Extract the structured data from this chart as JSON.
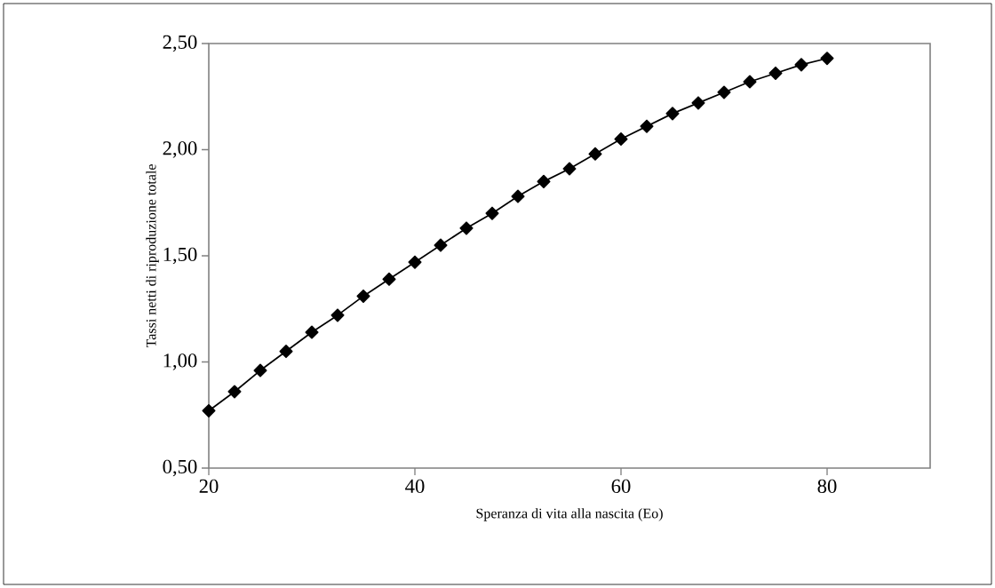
{
  "chart_data": {
    "type": "line",
    "xlabel": "Speranza di vita alla nascita (Eo)",
    "ylabel": "Tassi netti di riproduzione totale",
    "x": [
      20,
      22.5,
      25,
      27.5,
      30,
      32.5,
      35,
      37.5,
      40,
      42.5,
      45,
      47.5,
      50,
      52.5,
      55,
      57.5,
      60,
      62.5,
      65,
      67.5,
      70,
      72.5,
      75,
      77.5,
      80
    ],
    "series": [
      {
        "color": "#000000",
        "values": [
          0.77,
          0.86,
          0.96,
          1.05,
          1.14,
          1.22,
          1.31,
          1.39,
          1.47,
          1.55,
          1.63,
          1.7,
          1.78,
          1.85,
          1.91,
          1.98,
          2.05,
          2.11,
          2.17,
          2.22,
          2.27,
          2.32,
          2.36,
          2.4,
          2.43
        ]
      }
    ],
    "xlim": [
      20,
      90
    ],
    "ylim": [
      0.5,
      2.5
    ],
    "xticks": [
      20,
      40,
      60,
      80
    ],
    "yticks": [
      {
        "value": 0.5,
        "label": "0,50"
      },
      {
        "value": 1.0,
        "label": "1,00"
      },
      {
        "value": 1.5,
        "label": "1,50"
      },
      {
        "value": 2.0,
        "label": "2,00"
      },
      {
        "value": 2.5,
        "label": "2,50"
      }
    ],
    "marker": "diamond",
    "line_style": "solid"
  }
}
